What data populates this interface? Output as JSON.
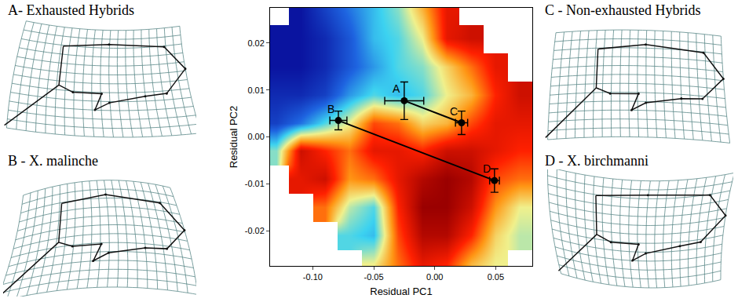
{
  "chart_data": {
    "type": "scatter",
    "xlabel": "Residual PC1",
    "ylabel": "Residual PC2",
    "xlim": [
      -0.135,
      0.08
    ],
    "ylim": [
      -0.0275,
      0.0275
    ],
    "xticks": [
      {
        "value": -0.1,
        "label": "-0.10"
      },
      {
        "value": -0.05,
        "label": "-0.05"
      },
      {
        "value": 0,
        "label": "0.00"
      },
      {
        "value": 0.05,
        "label": "0.05"
      }
    ],
    "yticks": [
      -0.02,
      -0.01,
      {
        "value": 0,
        "label": "0.00"
      },
      0.01,
      0.02
    ],
    "grid": false,
    "color": "#000000",
    "heatmap": {
      "x": [
        -0.13,
        -0.11,
        -0.09,
        -0.07,
        -0.05,
        -0.03,
        -0.01,
        0.01,
        0.03,
        0.05,
        0.07
      ],
      "y": [
        -0.027,
        -0.021,
        -0.015,
        -0.009,
        -0.003,
        0.003,
        0.009,
        0.015,
        0.021,
        0.027
      ],
      "z": [
        [
          null,
          null,
          null,
          null,
          0.5,
          0.7,
          0.85,
          0.8,
          0.6,
          0.5,
          null
        ],
        [
          null,
          null,
          null,
          0.35,
          0.3,
          0.75,
          0.95,
          0.95,
          0.8,
          0.55,
          0.45
        ],
        [
          null,
          null,
          0.7,
          0.45,
          0.35,
          0.8,
          1.0,
          1.0,
          0.9,
          0.65,
          0.5
        ],
        [
          null,
          0.85,
          0.9,
          0.65,
          0.7,
          0.85,
          0.95,
          1.0,
          0.95,
          0.75,
          0.7
        ],
        [
          0.4,
          0.9,
          0.8,
          0.7,
          0.85,
          0.85,
          0.8,
          0.9,
          0.9,
          0.85,
          0.8
        ],
        [
          0.1,
          0.2,
          0.35,
          0.5,
          0.75,
          0.7,
          0.55,
          0.6,
          0.75,
          0.85,
          0.85
        ],
        [
          0.05,
          0.05,
          0.1,
          0.25,
          0.35,
          0.3,
          0.35,
          0.5,
          0.6,
          0.8,
          0.9
        ],
        [
          0.0,
          0.0,
          0.05,
          0.15,
          0.25,
          0.35,
          0.4,
          0.55,
          0.7,
          0.85,
          null
        ],
        [
          0.0,
          0.0,
          0.05,
          0.15,
          0.3,
          0.35,
          0.5,
          0.85,
          0.9,
          null,
          null
        ],
        [
          null,
          0.0,
          0.1,
          0.2,
          0.3,
          0.4,
          0.6,
          0.85,
          null,
          null,
          null
        ]
      ],
      "zlim": [
        0,
        1
      ]
    },
    "points": [
      {
        "name": "A",
        "x": -0.025,
        "y": 0.0077,
        "xerr": 0.016,
        "yerr": 0.004
      },
      {
        "name": "B",
        "x": -0.079,
        "y": 0.0035,
        "xerr": 0.007,
        "yerr": 0.002
      },
      {
        "name": "C",
        "x": 0.022,
        "y": 0.003,
        "xerr": 0.005,
        "yerr": 0.0025
      },
      {
        "name": "D",
        "x": 0.049,
        "y": -0.0093,
        "xerr": 0.004,
        "yerr": 0.0025
      }
    ],
    "segments": [
      [
        "B",
        "D"
      ],
      [
        "A",
        "C"
      ]
    ]
  },
  "panels": [
    {
      "label": "A- Exhausted Hybrids"
    },
    {
      "label": "B - X. malinche"
    },
    {
      "label": "C - Non-exhausted Hybrids"
    },
    {
      "label": "D - X. birchmanni"
    }
  ]
}
